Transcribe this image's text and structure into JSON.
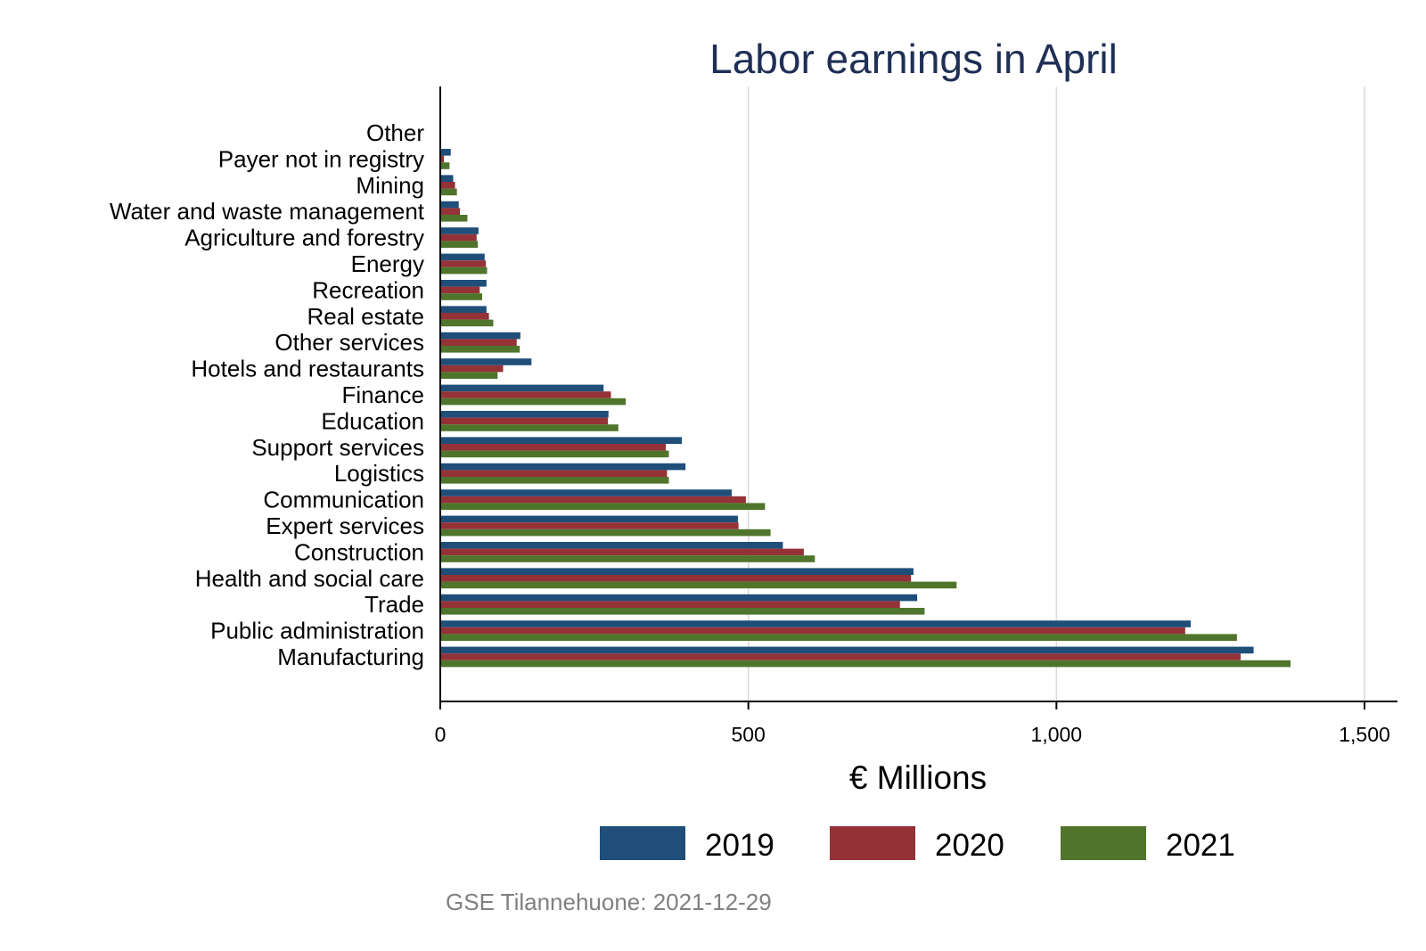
{
  "chart_data": {
    "type": "bar",
    "orientation": "horizontal",
    "title": "Labor earnings in April",
    "xlabel": "€ Millions",
    "ylabel": "",
    "xlim": [
      0,
      1550
    ],
    "xticks": [
      0,
      500,
      1000,
      1500
    ],
    "xtick_labels": [
      "0",
      "500",
      "1,000",
      "1,500"
    ],
    "grid": true,
    "legend_position": "bottom",
    "caption": "GSE Tilannehuone: 2021-12-29",
    "categories": [
      "Other",
      "Payer not in registry",
      "Mining",
      "Water and waste management",
      "Agriculture and forestry",
      "Energy",
      "Recreation",
      "Real estate",
      "Other services",
      "Hotels and restaurants",
      "Finance",
      "Education",
      "Support services",
      "Logistics",
      "Communication",
      "Expert services",
      "Construction",
      "Health and social care",
      "Trade",
      "Public administration",
      "Manufacturing"
    ],
    "series": [
      {
        "name": "2019",
        "color": "#1f4e79",
        "values": [
          1,
          17,
          21,
          30,
          62,
          72,
          75,
          75,
          130,
          148,
          265,
          273,
          392,
          398,
          473,
          483,
          556,
          768,
          774,
          1218,
          1320
        ]
      },
      {
        "name": "2020",
        "color": "#943238",
        "values": [
          1,
          6,
          24,
          32,
          59,
          74,
          64,
          79,
          124,
          102,
          277,
          272,
          366,
          368,
          496,
          484,
          590,
          764,
          746,
          1209,
          1299
        ]
      },
      {
        "name": "2021",
        "color": "#4f752c",
        "values": [
          1,
          15,
          27,
          44,
          61,
          76,
          68,
          86,
          129,
          93,
          301,
          289,
          371,
          371,
          527,
          536,
          608,
          838,
          786,
          1293,
          1380
        ]
      }
    ]
  }
}
